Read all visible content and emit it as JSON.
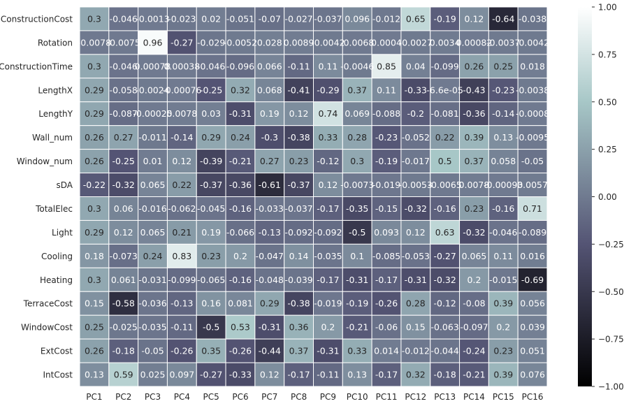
{
  "chart_data": {
    "type": "heatmap",
    "columns": [
      "PC1",
      "PC2",
      "PC3",
      "PC4",
      "PC5",
      "PC6",
      "PC7",
      "PC8",
      "PC9",
      "PC10",
      "PC11",
      "PC12",
      "PC13",
      "PC14",
      "PC15",
      "PC16"
    ],
    "rows": [
      "ConstructionCost",
      "Rotation",
      "ConstructionTime",
      "LengthX",
      "LengthY",
      "Wall_num",
      "Window_num",
      "sDA",
      "TotalElec",
      "Light",
      "Cooling",
      "Heating",
      "TerraceCost",
      "WindowCost",
      "ExtCost",
      "IntCost"
    ],
    "values": [
      [
        0.3,
        -0.046,
        -0.0013,
        -0.023,
        0.02,
        -0.051,
        -0.07,
        -0.027,
        -0.037,
        0.096,
        -0.012,
        0.65,
        -0.19,
        0.12,
        -0.64,
        -0.038
      ],
      [
        -0.0078,
        -0.0075,
        0.96,
        -0.27,
        -0.029,
        -0.0052,
        0.028,
        0.0089,
        -0.0042,
        -0.0068,
        0.0004,
        -0.0027,
        0.0034,
        0.00082,
        -0.0037,
        -0.0042
      ],
      [
        0.3,
        -0.046,
        0.00078,
        0.00038,
        -0.046,
        -0.096,
        0.066,
        -0.11,
        0.11,
        -0.0046,
        0.85,
        0.04,
        -0.099,
        0.26,
        0.25,
        0.018
      ],
      [
        0.29,
        -0.058,
        -0.0024,
        -0.00076,
        -0.25,
        0.32,
        0.068,
        -0.41,
        -0.29,
        0.37,
        0.11,
        -0.33,
        -6.6e-05,
        -0.43,
        -0.23,
        -0.0038
      ],
      [
        0.29,
        -0.087,
        -0.00025,
        0.0078,
        0.03,
        -0.31,
        0.19,
        0.12,
        0.74,
        0.069,
        -0.088,
        -0.2,
        -0.081,
        -0.36,
        -0.14,
        -0.0008
      ],
      [
        0.26,
        0.27,
        -0.011,
        -0.14,
        0.29,
        0.24,
        -0.3,
        -0.38,
        0.33,
        0.28,
        -0.23,
        -0.052,
        0.22,
        0.39,
        0.13,
        -0.0095
      ],
      [
        0.26,
        -0.25,
        0.01,
        0.12,
        -0.39,
        -0.21,
        0.27,
        0.23,
        -0.12,
        0.3,
        -0.19,
        -0.017,
        0.5,
        0.37,
        0.058,
        -0.05
      ],
      [
        -0.22,
        -0.32,
        0.065,
        0.22,
        -0.37,
        -0.36,
        -0.61,
        -0.37,
        0.12,
        -0.0073,
        -0.019,
        -0.0053,
        -0.0065,
        0.0078,
        -0.00093,
        0.0057
      ],
      [
        0.3,
        0.06,
        -0.016,
        -0.062,
        -0.045,
        -0.16,
        -0.033,
        -0.037,
        -0.17,
        -0.35,
        -0.15,
        -0.32,
        -0.16,
        0.23,
        -0.16,
        0.71
      ],
      [
        0.29,
        0.12,
        0.065,
        0.21,
        0.19,
        -0.066,
        -0.13,
        -0.092,
        -0.092,
        -0.5,
        0.093,
        0.12,
        0.63,
        -0.32,
        -0.046,
        -0.089
      ],
      [
        0.18,
        -0.073,
        0.24,
        0.83,
        0.23,
        0.2,
        -0.047,
        0.14,
        -0.035,
        0.1,
        -0.085,
        -0.053,
        -0.27,
        0.065,
        0.11,
        0.016
      ],
      [
        0.3,
        0.061,
        -0.031,
        -0.099,
        -0.065,
        -0.16,
        -0.048,
        -0.039,
        -0.17,
        -0.31,
        -0.17,
        -0.31,
        -0.32,
        0.2,
        -0.015,
        -0.69
      ],
      [
        0.15,
        -0.58,
        -0.036,
        -0.13,
        0.16,
        0.081,
        0.29,
        -0.38,
        -0.019,
        -0.19,
        -0.26,
        0.28,
        -0.12,
        -0.08,
        0.39,
        0.056
      ],
      [
        0.25,
        -0.025,
        -0.035,
        -0.11,
        -0.5,
        0.53,
        -0.31,
        0.36,
        0.2,
        -0.21,
        -0.06,
        0.15,
        -0.063,
        -0.097,
        0.2,
        0.039
      ],
      [
        0.26,
        -0.18,
        -0.05,
        -0.26,
        0.35,
        -0.26,
        -0.44,
        0.37,
        -0.31,
        0.33,
        0.014,
        -0.012,
        -0.044,
        -0.24,
        0.23,
        0.051
      ],
      [
        0.13,
        0.59,
        0.025,
        0.097,
        -0.27,
        -0.33,
        0.12,
        -0.17,
        -0.11,
        0.13,
        -0.17,
        0.32,
        -0.18,
        -0.21,
        0.39,
        0.076
      ]
    ],
    "labels": [
      [
        "0.3",
        "-0.046",
        "-0.0013",
        "-0.023",
        "0.02",
        "-0.051",
        "-0.07",
        "-0.027",
        "-0.037",
        "0.096",
        "-0.012",
        "0.65",
        "-0.19",
        "0.12",
        "-0.64",
        "-0.038"
      ],
      [
        "-0.0078",
        "-0.0075",
        "0.96",
        "-0.27",
        "-0.029",
        "-0.0052",
        "0.028",
        "0.0089",
        "-0.0042",
        "-0.0068",
        "0.0004",
        "-0.0027",
        "0.0034",
        "0.00082",
        "-0.0037",
        "-0.0042"
      ],
      [
        "0.3",
        "-0.046",
        "0.00078",
        "0.00038",
        "-0.046",
        "-0.096",
        "0.066",
        "-0.11",
        "0.11",
        "-0.0046",
        "0.85",
        "0.04",
        "-0.099",
        "0.26",
        "0.25",
        "0.018"
      ],
      [
        "0.29",
        "-0.058",
        "-0.0024",
        "-0.00076",
        "-0.25",
        "0.32",
        "0.068",
        "-0.41",
        "-0.29",
        "0.37",
        "0.11",
        "-0.33",
        "-6.6e-05",
        "-0.43",
        "-0.23",
        "-0.0038"
      ],
      [
        "0.29",
        "-0.087",
        "-0.00025",
        "0.0078",
        "0.03",
        "-0.31",
        "0.19",
        "0.12",
        "0.74",
        "0.069",
        "-0.088",
        "-0.2",
        "-0.081",
        "-0.36",
        "-0.14",
        "-0.0008"
      ],
      [
        "0.26",
        "0.27",
        "-0.011",
        "-0.14",
        "0.29",
        "0.24",
        "-0.3",
        "-0.38",
        "0.33",
        "0.28",
        "-0.23",
        "-0.052",
        "0.22",
        "0.39",
        "0.13",
        "-0.0095"
      ],
      [
        "0.26",
        "-0.25",
        "0.01",
        "0.12",
        "-0.39",
        "-0.21",
        "0.27",
        "0.23",
        "-0.12",
        "0.3",
        "-0.19",
        "-0.017",
        "0.5",
        "0.37",
        "0.058",
        "-0.05"
      ],
      [
        "-0.22",
        "-0.32",
        "0.065",
        "0.22",
        "-0.37",
        "-0.36",
        "-0.61",
        "-0.37",
        "0.12",
        "-0.0073",
        "-0.019",
        "-0.0053",
        "-0.0065",
        "0.0078",
        "-0.00093",
        "0.0057"
      ],
      [
        "0.3",
        "0.06",
        "-0.016",
        "-0.062",
        "-0.045",
        "-0.16",
        "-0.033",
        "-0.037",
        "-0.17",
        "-0.35",
        "-0.15",
        "-0.32",
        "-0.16",
        "0.23",
        "-0.16",
        "0.71"
      ],
      [
        "0.29",
        "0.12",
        "0.065",
        "0.21",
        "0.19",
        "-0.066",
        "-0.13",
        "-0.092",
        "-0.092",
        "-0.5",
        "0.093",
        "0.12",
        "0.63",
        "-0.32",
        "-0.046",
        "-0.089"
      ],
      [
        "0.18",
        "-0.073",
        "0.24",
        "0.83",
        "0.23",
        "0.2",
        "-0.047",
        "0.14",
        "-0.035",
        "0.1",
        "-0.085",
        "-0.053",
        "-0.27",
        "0.065",
        "0.11",
        "0.016"
      ],
      [
        "0.3",
        "0.061",
        "-0.031",
        "-0.099",
        "-0.065",
        "-0.16",
        "-0.048",
        "-0.039",
        "-0.17",
        "-0.31",
        "-0.17",
        "-0.31",
        "-0.32",
        "0.2",
        "-0.015",
        "-0.69"
      ],
      [
        "0.15",
        "-0.58",
        "-0.036",
        "-0.13",
        "0.16",
        "0.081",
        "0.29",
        "-0.38",
        "-0.019",
        "-0.19",
        "-0.26",
        "0.28",
        "-0.12",
        "-0.08",
        "0.39",
        "0.056"
      ],
      [
        "0.25",
        "-0.025",
        "-0.035",
        "-0.11",
        "-0.5",
        "0.53",
        "-0.31",
        "0.36",
        "0.2",
        "-0.21",
        "-0.06",
        "0.15",
        "-0.063",
        "-0.097",
        "0.2",
        "0.039"
      ],
      [
        "0.26",
        "-0.18",
        "-0.05",
        "-0.26",
        "0.35",
        "-0.26",
        "-0.44",
        "0.37",
        "-0.31",
        "0.33",
        "0.014",
        "-0.012",
        "-0.044",
        "-0.24",
        "0.23",
        "0.051"
      ],
      [
        "0.13",
        "0.59",
        "0.025",
        "0.097",
        "-0.27",
        "-0.33",
        "0.12",
        "-0.17",
        "-0.11",
        "0.13",
        "-0.17",
        "0.32",
        "-0.18",
        "-0.21",
        "0.39",
        "0.076"
      ]
    ],
    "colorbar": {
      "range": [
        -1.0,
        1.0
      ],
      "ticks": [
        1.0,
        0.75,
        0.5,
        0.25,
        0.0,
        -0.25,
        -0.5,
        -0.75,
        -1.0
      ],
      "tick_labels": [
        "1.00",
        "0.75",
        "0.50",
        "0.25",
        "0.00",
        "−0.25",
        "−0.50",
        "−0.75",
        "−1.00"
      ],
      "colormap": "bone",
      "colormap_stops": [
        "#000000",
        "#545474",
        "#a7c7c7",
        "#ffffff"
      ]
    },
    "grid": true,
    "grid_color": "#ffffff",
    "title": "",
    "xlabel": "",
    "ylabel": ""
  }
}
